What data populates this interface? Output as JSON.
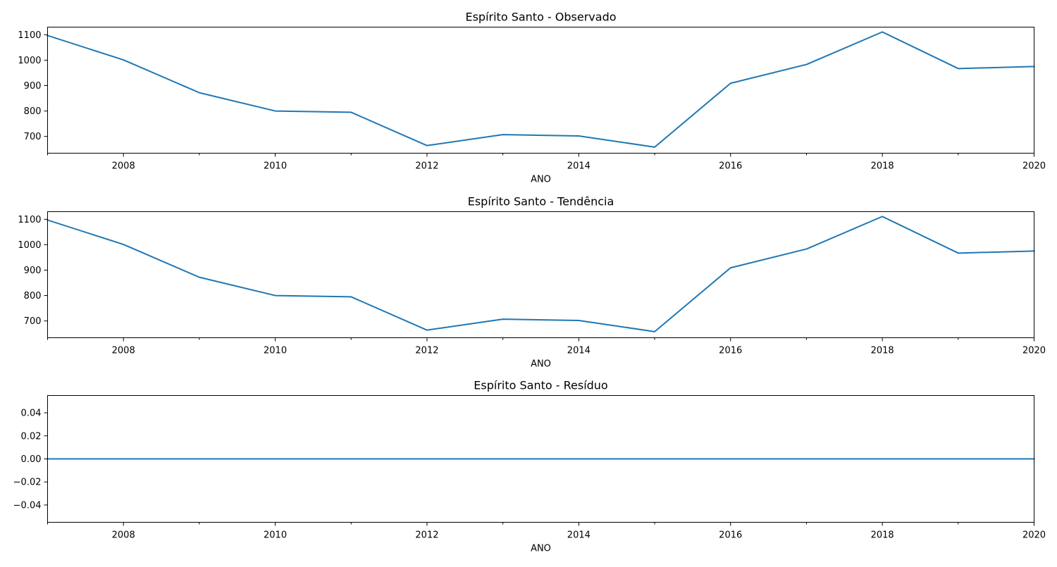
{
  "chart_data": [
    {
      "type": "line",
      "title": "Espírito Santo - Observado",
      "xlabel": "ANO",
      "ylabel": "",
      "x": [
        2007,
        2008,
        2009,
        2010,
        2011,
        2012,
        2013,
        2014,
        2015,
        2016,
        2017,
        2018,
        2019,
        2020
      ],
      "series": [
        {
          "values": [
            1097,
            1001,
            872,
            800,
            795,
            664,
            707,
            702,
            658,
            909,
            983,
            1111,
            967,
            975
          ]
        }
      ],
      "xlim": [
        2007,
        2020
      ],
      "ylim": [
        634,
        1130
      ],
      "x_major_ticks": [
        2008,
        2010,
        2012,
        2014,
        2016,
        2018,
        2020
      ],
      "x_minor_ticks": [
        2007,
        2009,
        2011,
        2013,
        2015,
        2017,
        2019
      ],
      "y_ticks": [
        700,
        800,
        900,
        1000,
        1100
      ],
      "grid": false,
      "line_color": "#1f77b4"
    },
    {
      "type": "line",
      "title": "Espírito Santo - Tendência",
      "xlabel": "ANO",
      "ylabel": "",
      "x": [
        2007,
        2008,
        2009,
        2010,
        2011,
        2012,
        2013,
        2014,
        2015,
        2016,
        2017,
        2018,
        2019,
        2020
      ],
      "series": [
        {
          "values": [
            1097,
            1001,
            872,
            800,
            795,
            664,
            707,
            702,
            658,
            909,
            983,
            1111,
            967,
            975
          ]
        }
      ],
      "xlim": [
        2007,
        2020
      ],
      "ylim": [
        634,
        1130
      ],
      "x_major_ticks": [
        2008,
        2010,
        2012,
        2014,
        2016,
        2018,
        2020
      ],
      "x_minor_ticks": [
        2007,
        2009,
        2011,
        2013,
        2015,
        2017,
        2019
      ],
      "y_ticks": [
        700,
        800,
        900,
        1000,
        1100
      ],
      "grid": false,
      "line_color": "#1f77b4"
    },
    {
      "type": "line",
      "title": "Espírito Santo - Resíduo",
      "xlabel": "ANO",
      "ylabel": "",
      "x": [
        2007,
        2008,
        2009,
        2010,
        2011,
        2012,
        2013,
        2014,
        2015,
        2016,
        2017,
        2018,
        2019,
        2020
      ],
      "series": [
        {
          "values": [
            0,
            0,
            0,
            0,
            0,
            0,
            0,
            0,
            0,
            0,
            0,
            0,
            0,
            0
          ]
        }
      ],
      "xlim": [
        2007,
        2020
      ],
      "ylim": [
        -0.055,
        0.055
      ],
      "x_major_ticks": [
        2008,
        2010,
        2012,
        2014,
        2016,
        2018,
        2020
      ],
      "x_minor_ticks": [
        2007,
        2009,
        2011,
        2013,
        2015,
        2017,
        2019
      ],
      "y_ticks": [
        -0.04,
        -0.02,
        0.0,
        0.02,
        0.04
      ],
      "y_tick_labels": [
        "−0.04",
        "−0.02",
        "0.00",
        "0.02",
        "0.04"
      ],
      "grid": false,
      "line_color": "#1f77b4"
    }
  ]
}
